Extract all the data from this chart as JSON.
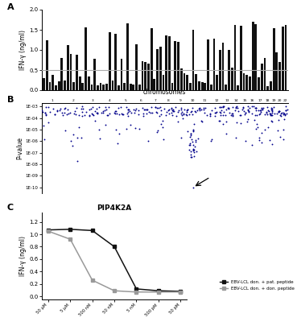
{
  "panel_A": {
    "label": "A",
    "ylabel": "IFN-γ (ng/ml)",
    "ylim": [
      0.0,
      2.0
    ],
    "yticks": [
      0.0,
      0.5,
      1.0,
      1.5,
      2.0
    ],
    "threshold": 0.5,
    "bar_color": "#111111",
    "threshold_color": "#aaaaaa",
    "bar_values": [
      0.3,
      1.25,
      0.2,
      0.38,
      0.13,
      0.22,
      0.8,
      0.25,
      1.12,
      0.9,
      0.2,
      0.88,
      0.35,
      0.18,
      1.56,
      0.35,
      0.15,
      0.78,
      0.12,
      0.18,
      0.15,
      0.16,
      1.45,
      0.25,
      1.4,
      0.13,
      0.78,
      0.18,
      1.67,
      0.16,
      0.14,
      1.15,
      0.14,
      0.73,
      0.71,
      0.66,
      1.55,
      0.28,
      1.02,
      1.08,
      0.38,
      1.37,
      1.35,
      0.18,
      1.23,
      1.2,
      0.55,
      0.42,
      0.38,
      0.18,
      1.5,
      0.4,
      0.23,
      0.2,
      0.18,
      1.27,
      0.15,
      1.28,
      0.38,
      1.01,
      1.18,
      0.15,
      1.0,
      0.57,
      1.62,
      0.12,
      1.6,
      0.43,
      0.38,
      0.34,
      1.7,
      1.65,
      0.33,
      0.67,
      0.8,
      0.1,
      0.22,
      1.55,
      0.95,
      0.7,
      1.58,
      1.62
    ]
  },
  "panel_B": {
    "label": "B",
    "title": "chromosomes",
    "ylabel": "P-value",
    "ytick_labels": [
      "1E-03",
      "1E-04",
      "1E-05",
      "1E-06",
      "1E-07",
      "1E-08",
      "1E-09",
      "1E-10"
    ],
    "ytick_values": [
      -3,
      -4,
      -5,
      -6,
      -7,
      -8,
      -9,
      -10
    ],
    "ylim": [
      -10.5,
      -2.7
    ],
    "dot_color": "#00008B",
    "chr_labels": [
      "1",
      "2",
      "3",
      "4",
      "5",
      "6",
      "7",
      "8",
      "9",
      "10",
      "11",
      "12",
      "13",
      "14",
      "15",
      "16",
      "17",
      "18",
      "19",
      "20",
      "22"
    ],
    "chr_sizes": [
      8.0,
      7.5,
      6.5,
      6.0,
      5.8,
      5.5,
      5.0,
      4.8,
      4.2,
      4.5,
      4.5,
      4.2,
      3.5,
      3.2,
      3.0,
      2.8,
      2.8,
      2.5,
      2.2,
      2.2,
      2.0
    ]
  },
  "panel_C": {
    "label": "C",
    "title": "PIP4K2A",
    "ylabel": "IFN-γ (ng/ml)",
    "ylim": [
      -0.05,
      1.35
    ],
    "yticks": [
      0.0,
      0.2,
      0.4,
      0.6,
      0.8,
      1.0,
      1.2
    ],
    "xlabel_ticks": [
      "50 μM",
      "5 μM",
      "500 nM",
      "50 nM",
      "5 nM",
      "500 pM",
      "50 pM"
    ],
    "line1_color": "#111111",
    "line2_color": "#999999",
    "line1_values": [
      1.07,
      1.08,
      1.06,
      0.8,
      0.12,
      0.09,
      0.08
    ],
    "line2_values": [
      1.05,
      0.92,
      0.26,
      0.09,
      0.07,
      0.07,
      0.07
    ],
    "legend_line1": "EBV-LCL don. + pat. peptide",
    "legend_line2": "EBV-LCL don. + don. peptide",
    "marker": "s"
  },
  "bg_color": "#ffffff",
  "fig_bg": "#ffffff"
}
